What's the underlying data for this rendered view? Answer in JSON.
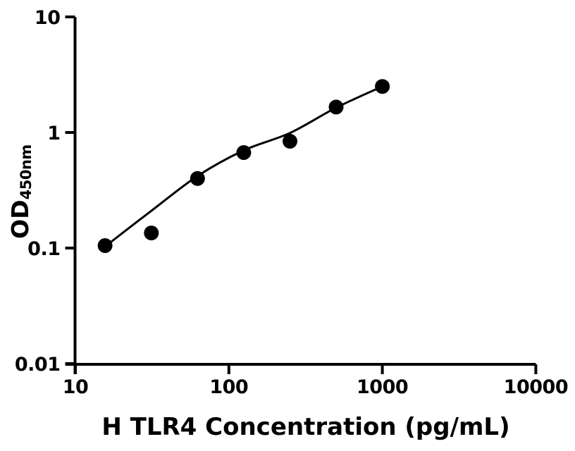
{
  "chart_data": {
    "type": "scatter",
    "title": "",
    "xlabel": "H TLR4 Concentration (pg/mL)",
    "ylabel_main": "OD",
    "ylabel_sub": "450nm",
    "x_scale": "log",
    "y_scale": "log",
    "xlim": [
      10,
      10000
    ],
    "ylim": [
      0.01,
      10
    ],
    "x_tick_labels": [
      "10",
      "100",
      "1000",
      "10000"
    ],
    "y_tick_labels": [
      "10",
      "1",
      "0.1",
      "0.01"
    ],
    "grid": "off",
    "legend": "none",
    "series": [
      {
        "name": "standard-points",
        "marker": "filled-circle",
        "x": [
          15.6,
          31.25,
          62.5,
          125,
          250,
          500,
          1000
        ],
        "y": [
          0.105,
          0.135,
          0.4,
          0.67,
          0.84,
          1.66,
          2.5
        ]
      }
    ],
    "fit_curve": {
      "name": "standard-curve-fit",
      "type": "smooth-fit",
      "points": [
        [
          15.6,
          0.103
        ],
        [
          31.25,
          0.21
        ],
        [
          62.5,
          0.42
        ],
        [
          125,
          0.7
        ],
        [
          250,
          0.99
        ],
        [
          500,
          1.64
        ],
        [
          1000,
          2.5
        ]
      ]
    },
    "colors": {
      "point": "#000000",
      "curve": "#000000",
      "axis": "#000000",
      "text": "#000000",
      "background": "#ffffff"
    }
  }
}
